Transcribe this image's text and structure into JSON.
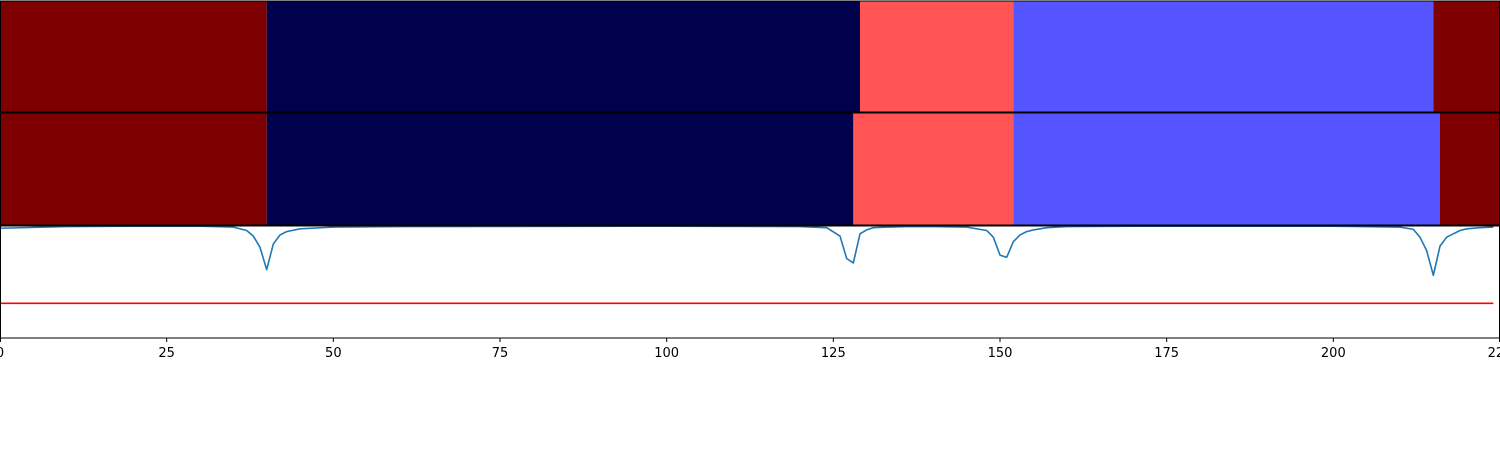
{
  "chart_data": [
    {
      "type": "heatmap",
      "name": "segmentation-row-1",
      "segments": [
        {
          "start": 0,
          "end": 40,
          "color": "#7f0000"
        },
        {
          "start": 40,
          "end": 129,
          "color": "#00004c"
        },
        {
          "start": 129,
          "end": 152,
          "color": "#ff5555"
        },
        {
          "start": 152,
          "end": 215,
          "color": "#5555ff"
        },
        {
          "start": 215,
          "end": 225,
          "color": "#7f0000"
        }
      ]
    },
    {
      "type": "heatmap",
      "name": "segmentation-row-2",
      "segments": [
        {
          "start": 0,
          "end": 40,
          "color": "#7f0000"
        },
        {
          "start": 40,
          "end": 128,
          "color": "#00004c"
        },
        {
          "start": 128,
          "end": 152,
          "color": "#ff5555"
        },
        {
          "start": 152,
          "end": 216,
          "color": "#5555ff"
        },
        {
          "start": 216,
          "end": 225,
          "color": "#7f0000"
        }
      ]
    },
    {
      "type": "line",
      "xlim": [
        0,
        225
      ],
      "ylim": [
        0,
        1
      ],
      "grid": false,
      "xticks": [
        0,
        25,
        50,
        75,
        100,
        125,
        150,
        175,
        200,
        225
      ],
      "tick_labels": [
        "0",
        "25",
        "50",
        "75",
        "100",
        "125",
        "150",
        "175",
        "200",
        "225"
      ],
      "series": [
        {
          "color": "#1f77b4",
          "x": [
            0,
            10,
            20,
            30,
            35,
            37,
            38,
            39,
            40,
            41,
            42,
            43,
            45,
            50,
            60,
            100,
            120,
            124,
            126,
            127,
            128,
            129,
            130,
            131,
            133,
            136,
            140,
            145,
            148,
            149,
            150,
            151,
            152,
            153,
            154,
            155,
            157,
            160,
            170,
            200,
            210,
            212,
            213,
            214,
            215,
            216,
            217,
            218,
            219,
            220,
            222,
            224
          ],
          "y": [
            0.98,
            0.995,
            0.998,
            0.998,
            0.99,
            0.96,
            0.91,
            0.81,
            0.61,
            0.84,
            0.92,
            0.95,
            0.975,
            0.99,
            0.995,
            0.998,
            0.995,
            0.985,
            0.91,
            0.71,
            0.67,
            0.93,
            0.965,
            0.985,
            0.99,
            0.995,
            0.995,
            0.99,
            0.96,
            0.9,
            0.74,
            0.72,
            0.86,
            0.92,
            0.95,
            0.965,
            0.985,
            0.995,
            0.998,
            0.998,
            0.99,
            0.97,
            0.9,
            0.78,
            0.56,
            0.82,
            0.9,
            0.93,
            0.96,
            0.975,
            0.985,
            0.99
          ]
        },
        {
          "color": "#ff0000",
          "x": [
            0,
            224
          ],
          "y": [
            0.31,
            0.31
          ]
        }
      ]
    }
  ]
}
